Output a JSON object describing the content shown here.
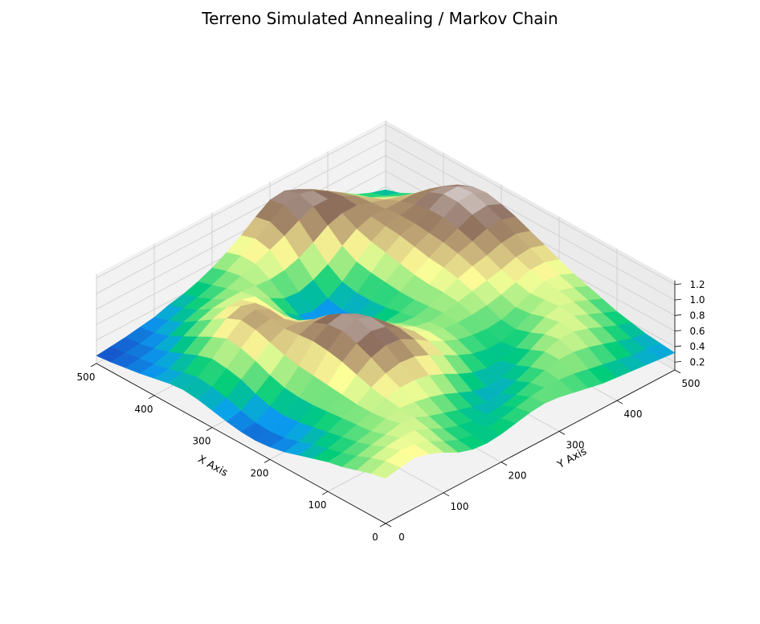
{
  "chart_data": {
    "type": "surface3d",
    "title": "Terreno Simulated Annealing / Markov Chain",
    "xlabel": "X Axis",
    "ylabel": "Y Axis",
    "zlabel": "",
    "xlim": [
      0,
      500
    ],
    "ylim": [
      0,
      500
    ],
    "zlim": [
      0.1,
      1.25
    ],
    "x_ticks": [
      0,
      100,
      200,
      300,
      400,
      500
    ],
    "y_ticks": [
      0,
      100,
      200,
      300,
      400,
      500
    ],
    "z_ticks": [
      0.2,
      0.4,
      0.6,
      0.8,
      1.0,
      1.2
    ],
    "x_tick_labels": [
      "0",
      "100",
      "200",
      "300",
      "400",
      "500"
    ],
    "y_tick_labels": [
      "0",
      "100",
      "200",
      "300",
      "400",
      "500"
    ],
    "z_tick_labels": [
      "0.2",
      "0.4",
      "0.6",
      "0.8",
      "1.0",
      "1.2"
    ],
    "grid": true,
    "colormap": "terrain",
    "colormap_stops": [
      "#1a3fc0",
      "#0aa0f0",
      "#00cc7a",
      "#8ee880",
      "#ffff99",
      "#c8b07a",
      "#8a6a5a",
      "#d8cfcc"
    ],
    "z_grid": {
      "x": [
        0,
        25,
        50,
        75,
        100,
        125,
        150,
        175,
        200,
        225,
        250,
        275,
        300,
        325,
        350,
        375,
        400,
        425,
        450,
        475,
        500
      ],
      "y": [
        0,
        25,
        50,
        75,
        100,
        125,
        150,
        175,
        200,
        225,
        250,
        275,
        300,
        325,
        350,
        375,
        400,
        425,
        450,
        475,
        500
      ],
      "note": "rows indexed by y, columns by x",
      "values": [
        [
          0.68,
          0.64,
          0.58,
          0.52,
          0.48,
          0.42,
          0.36,
          0.3,
          0.26,
          0.24,
          0.25,
          0.28,
          0.32,
          0.36,
          0.38,
          0.36,
          0.32,
          0.28,
          0.25,
          0.22,
          0.2
        ],
        [
          0.72,
          0.7,
          0.64,
          0.56,
          0.5,
          0.45,
          0.4,
          0.33,
          0.28,
          0.26,
          0.27,
          0.32,
          0.38,
          0.42,
          0.44,
          0.4,
          0.34,
          0.3,
          0.27,
          0.24,
          0.22
        ],
        [
          0.75,
          0.74,
          0.68,
          0.6,
          0.54,
          0.5,
          0.46,
          0.42,
          0.38,
          0.36,
          0.38,
          0.44,
          0.52,
          0.56,
          0.58,
          0.52,
          0.44,
          0.36,
          0.3,
          0.26,
          0.24
        ],
        [
          0.7,
          0.72,
          0.7,
          0.64,
          0.58,
          0.56,
          0.54,
          0.52,
          0.5,
          0.5,
          0.52,
          0.58,
          0.66,
          0.72,
          0.74,
          0.66,
          0.56,
          0.46,
          0.36,
          0.3,
          0.27
        ],
        [
          0.62,
          0.66,
          0.7,
          0.68,
          0.64,
          0.62,
          0.62,
          0.64,
          0.66,
          0.68,
          0.7,
          0.74,
          0.8,
          0.86,
          0.88,
          0.8,
          0.68,
          0.56,
          0.44,
          0.36,
          0.3
        ],
        [
          0.52,
          0.56,
          0.62,
          0.66,
          0.68,
          0.7,
          0.74,
          0.8,
          0.86,
          0.9,
          0.92,
          0.9,
          0.88,
          0.9,
          0.92,
          0.86,
          0.74,
          0.62,
          0.5,
          0.42,
          0.36
        ],
        [
          0.46,
          0.48,
          0.52,
          0.58,
          0.66,
          0.74,
          0.82,
          0.92,
          1.0,
          1.06,
          1.04,
          0.96,
          0.86,
          0.8,
          0.82,
          0.8,
          0.74,
          0.64,
          0.54,
          0.46,
          0.4
        ],
        [
          0.44,
          0.44,
          0.46,
          0.52,
          0.62,
          0.74,
          0.86,
          0.98,
          1.06,
          1.12,
          1.08,
          0.96,
          0.8,
          0.68,
          0.64,
          0.66,
          0.68,
          0.64,
          0.58,
          0.52,
          0.46
        ],
        [
          0.46,
          0.44,
          0.42,
          0.46,
          0.56,
          0.7,
          0.84,
          0.96,
          1.02,
          1.04,
          0.98,
          0.86,
          0.68,
          0.52,
          0.44,
          0.48,
          0.56,
          0.62,
          0.64,
          0.6,
          0.54
        ],
        [
          0.5,
          0.46,
          0.4,
          0.4,
          0.48,
          0.62,
          0.76,
          0.86,
          0.9,
          0.88,
          0.8,
          0.68,
          0.52,
          0.38,
          0.3,
          0.34,
          0.46,
          0.6,
          0.7,
          0.7,
          0.64
        ],
        [
          0.54,
          0.5,
          0.42,
          0.36,
          0.4,
          0.52,
          0.66,
          0.74,
          0.76,
          0.72,
          0.64,
          0.54,
          0.42,
          0.32,
          0.26,
          0.3,
          0.44,
          0.62,
          0.78,
          0.82,
          0.76
        ],
        [
          0.56,
          0.54,
          0.46,
          0.38,
          0.36,
          0.44,
          0.56,
          0.64,
          0.66,
          0.62,
          0.56,
          0.48,
          0.4,
          0.34,
          0.32,
          0.36,
          0.5,
          0.68,
          0.86,
          0.94,
          0.9
        ],
        [
          0.54,
          0.56,
          0.52,
          0.44,
          0.38,
          0.4,
          0.48,
          0.56,
          0.6,
          0.58,
          0.54,
          0.5,
          0.46,
          0.44,
          0.44,
          0.48,
          0.6,
          0.78,
          0.96,
          1.06,
          1.02
        ],
        [
          0.5,
          0.56,
          0.58,
          0.52,
          0.44,
          0.4,
          0.44,
          0.52,
          0.58,
          0.6,
          0.58,
          0.56,
          0.56,
          0.58,
          0.6,
          0.64,
          0.74,
          0.9,
          1.04,
          1.1,
          1.04
        ],
        [
          0.46,
          0.54,
          0.62,
          0.62,
          0.54,
          0.46,
          0.44,
          0.5,
          0.58,
          0.64,
          0.66,
          0.66,
          0.68,
          0.72,
          0.76,
          0.8,
          0.86,
          0.96,
          1.04,
          1.04,
          0.96
        ],
        [
          0.42,
          0.5,
          0.62,
          0.68,
          0.64,
          0.56,
          0.5,
          0.52,
          0.6,
          0.68,
          0.74,
          0.78,
          0.8,
          0.84,
          0.88,
          0.9,
          0.92,
          0.96,
          0.98,
          0.94,
          0.86
        ],
        [
          0.4,
          0.46,
          0.58,
          0.68,
          0.7,
          0.66,
          0.6,
          0.58,
          0.64,
          0.72,
          0.8,
          0.86,
          0.9,
          0.92,
          0.94,
          0.94,
          0.92,
          0.9,
          0.88,
          0.82,
          0.74
        ],
        [
          0.38,
          0.42,
          0.52,
          0.62,
          0.68,
          0.7,
          0.68,
          0.66,
          0.7,
          0.76,
          0.84,
          0.92,
          0.98,
          1.02,
          1.02,
          0.98,
          0.92,
          0.84,
          0.76,
          0.68,
          0.62
        ],
        [
          0.36,
          0.38,
          0.46,
          0.54,
          0.6,
          0.66,
          0.7,
          0.72,
          0.76,
          0.82,
          0.9,
          0.98,
          1.06,
          1.12,
          1.12,
          1.04,
          0.92,
          0.78,
          0.66,
          0.56,
          0.5
        ],
        [
          0.34,
          0.36,
          0.4,
          0.46,
          0.52,
          0.58,
          0.64,
          0.7,
          0.76,
          0.84,
          0.92,
          1.0,
          1.08,
          1.14,
          1.12,
          1.02,
          0.88,
          0.72,
          0.58,
          0.48,
          0.42
        ],
        [
          0.32,
          0.34,
          0.36,
          0.4,
          0.44,
          0.5,
          0.56,
          0.62,
          0.7,
          0.78,
          0.86,
          0.94,
          1.0,
          1.04,
          1.02,
          0.94,
          0.8,
          0.66,
          0.52,
          0.42,
          0.36
        ]
      ]
    }
  }
}
